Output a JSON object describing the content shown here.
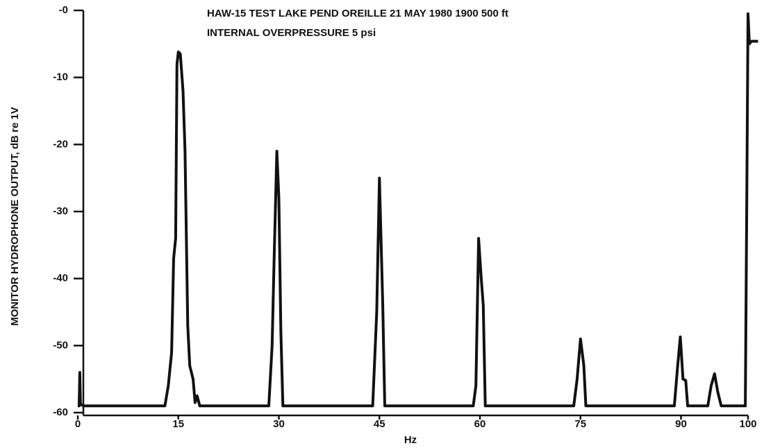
{
  "chart_data": {
    "type": "line",
    "title": "HAW-15 TEST   LAKE PEND OREILLE   21 MAY 1980   1900   500 ft",
    "subtitle": "INTERNAL OVERPRESSURE 5 psi",
    "x_label": "Hz",
    "y_label": "MONITOR HYDROPHONE OUTPUT, dB re 1V",
    "color": "#111111",
    "xlim": [
      0,
      100
    ],
    "xticks": [
      0,
      15,
      30,
      45,
      60,
      75,
      90,
      100
    ],
    "ylim": [
      -60,
      0
    ],
    "yticks": [
      {
        "value": 0,
        "label": "-0"
      },
      -10,
      -20,
      -30,
      -40,
      -50,
      -60
    ],
    "x": [
      0,
      0.2,
      0.3,
      0.4,
      1,
      13,
      13.5,
      14,
      14.3,
      14.6,
      14.8,
      15,
      15.3,
      15.7,
      16,
      16.4,
      16.7,
      17.2,
      17.5,
      17.8,
      18.2,
      28.5,
      29,
      29.3,
      29.7,
      30,
      30.3,
      30.6,
      44,
      44.3,
      44.6,
      45,
      45.5,
      45.8,
      59,
      59.4,
      59.8,
      60.2,
      60.5,
      60.8,
      74,
      74.5,
      75,
      75.5,
      75.8,
      89,
      89.5,
      89.9,
      90.3,
      90.7,
      91,
      94,
      94.5,
      95,
      95.5,
      96,
      99.6,
      99.8,
      100,
      100.2,
      100.5,
      101.5
    ],
    "values": [
      -59,
      -59,
      -54,
      -58.8,
      -59,
      -59,
      -56,
      -51,
      -37,
      -34,
      -8,
      -6.2,
      -6.5,
      -12,
      -21,
      -47,
      -53,
      -55,
      -58.5,
      -57.5,
      -59,
      -59,
      -50,
      -37,
      -21,
      -28,
      -48,
      -59,
      -59,
      -52,
      -45,
      -25,
      -44,
      -59,
      -59,
      -56,
      -34,
      -40,
      -44,
      -59,
      -59,
      -55,
      -49,
      -53,
      -59,
      -59,
      -53,
      -48.7,
      -55,
      -55.2,
      -59,
      -59,
      -56,
      -54.2,
      -57,
      -59,
      -59,
      -30,
      -0.5,
      -5,
      -4.6,
      -4.6
    ]
  }
}
